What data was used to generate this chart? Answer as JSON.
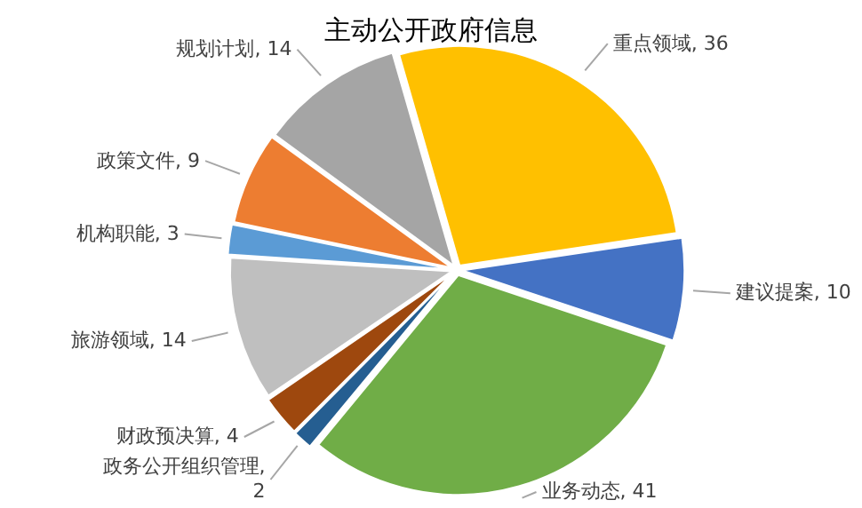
{
  "chart_data": {
    "type": "pie",
    "title": "主动公开政府信息",
    "categories": [
      "重点领域",
      "建议提案",
      "业务动态",
      "政务公开组织管理",
      "财政预决算",
      "旅游领域",
      "机构职能",
      "政策文件",
      "规划计划"
    ],
    "values": [
      36,
      10,
      41,
      2,
      4,
      14,
      3,
      9,
      14
    ],
    "value_labels": [
      ", 36",
      ", 10",
      ", 41",
      ", 2",
      ", 4",
      ", 14",
      ", 3",
      ", 9",
      ", 14"
    ],
    "colors": [
      "#ffc000",
      "#4472c4",
      "#70ad47",
      "#255e91",
      "#9e480e",
      "#bfbfbf",
      "#5b9bd5",
      "#ed7d31",
      "#a5a5a5"
    ],
    "legend": false
  }
}
